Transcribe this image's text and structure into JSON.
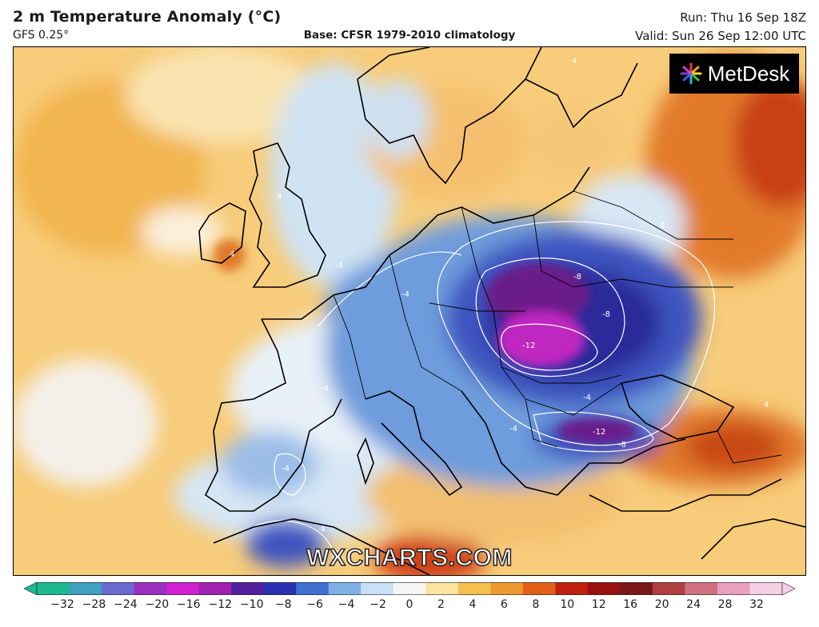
{
  "header": {
    "title": "2 m Temperature Anomaly (°C)",
    "model": "GFS 0.25°",
    "base": "Base: CFSR 1979-2010 climatology",
    "run": "Run: Thu 16 Sep 18Z",
    "valid": "Valid: Sun 26 Sep 12:00 UTC"
  },
  "branding": {
    "logo_text": "MetDesk",
    "watermark": "WXCHARTS.COM"
  },
  "contour_labels": [
    "4",
    "4",
    "4",
    "4",
    "4",
    "-4",
    "-4",
    "-4",
    "-4",
    "-4",
    "-4",
    "-4",
    "-8",
    "-8",
    "-8",
    "-12",
    "-12"
  ],
  "colorbar": {
    "ticks": [
      "−32",
      "−28",
      "−24",
      "−20",
      "−16",
      "−12",
      "−10",
      "−8",
      "−6",
      "−4",
      "−2",
      "0",
      "2",
      "4",
      "6",
      "8",
      "10",
      "12",
      "16",
      "20",
      "24",
      "28",
      "32"
    ],
    "colors": [
      "#1fb890",
      "#3fa0c0",
      "#6a6ad0",
      "#9a30c0",
      "#d020d0",
      "#a020b0",
      "#50209a",
      "#2a30b0",
      "#3f70d0",
      "#7fb0e6",
      "#c8e0f5",
      "#f5f5f5",
      "#fbe3a0",
      "#f5c050",
      "#ec9a30",
      "#e06018",
      "#c02010",
      "#9a1010",
      "#7a1818",
      "#b04040",
      "#d07080",
      "#e8a0c0",
      "#f4d0e4"
    ]
  }
}
